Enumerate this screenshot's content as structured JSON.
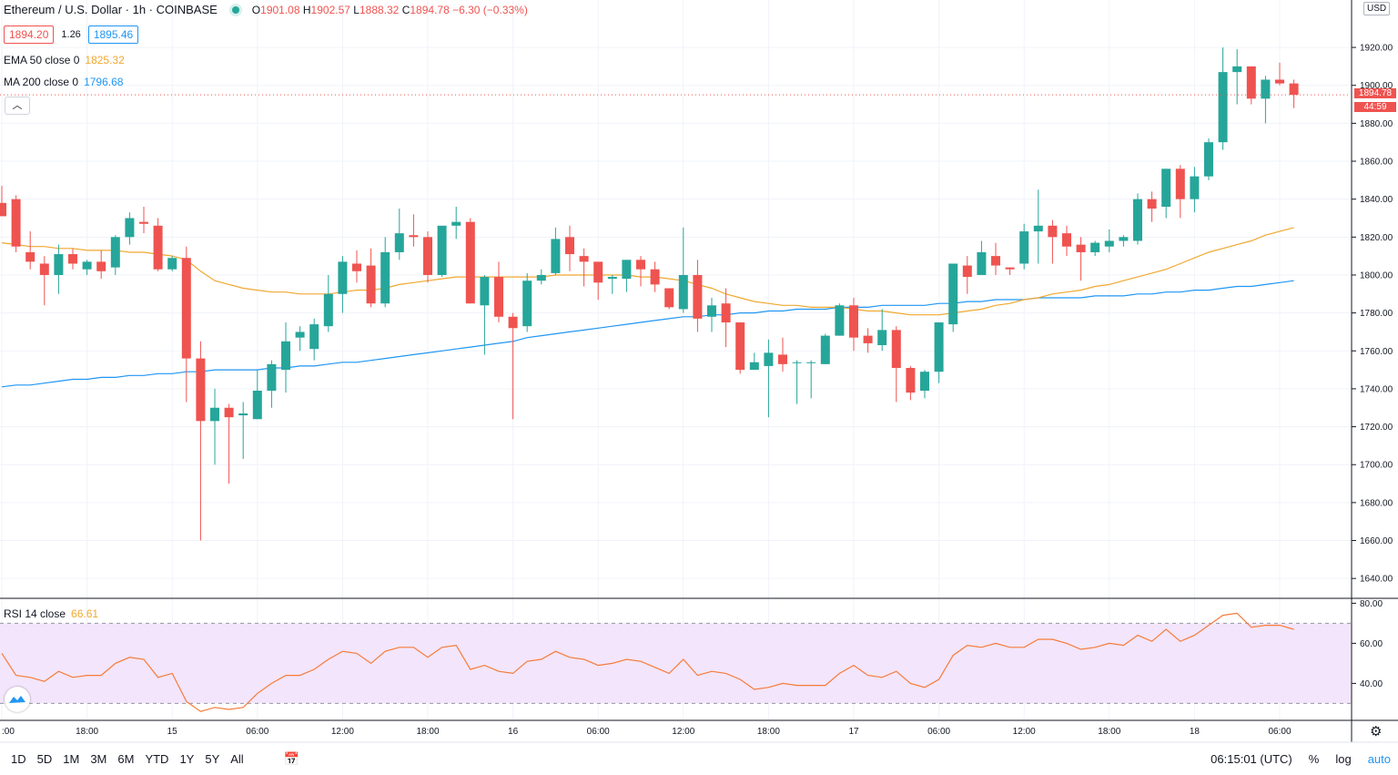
{
  "header": {
    "title": "Ethereum / U.S. Dollar · 1h · COINBASE",
    "o_label": "O",
    "o_value": "1901.08",
    "h_label": "H",
    "h_value": "1902.57",
    "l_label": "L",
    "l_value": "1888.32",
    "c_label": "C",
    "c_value": "1894.78",
    "change": "−6.30 (−0.33%)"
  },
  "quote": {
    "bid": "1894.20",
    "spread": "1.26",
    "ask": "1895.46"
  },
  "indicators": {
    "ema_label": "EMA 50 close 0",
    "ema_value": "1825.32",
    "ma_label": "MA 200 close 0",
    "ma_value": "1796.68",
    "rsi_label": "RSI 14 close",
    "rsi_value": "66.61"
  },
  "price_axis": {
    "currency": "USD",
    "last_price": "1894.78",
    "countdown": "44:59"
  },
  "bottom_bar": {
    "timeframes": [
      "1D",
      "5D",
      "1M",
      "3M",
      "6M",
      "YTD",
      "1Y",
      "5Y",
      "All"
    ],
    "clock": "06:15:01 (UTC)",
    "percent": "%",
    "log": "log",
    "auto": "auto"
  },
  "colors": {
    "up": "#26a69a",
    "down": "#ef5350",
    "ema": "#f0a830",
    "ma": "#2196f3",
    "rsi": "#f57c3a",
    "rsi_band": "#f3e5fb"
  },
  "chart_data": {
    "type": "candlestick",
    "title": "Ethereum / U.S. Dollar · 1h · COINBASE",
    "ylim": [
      1630,
      1945
    ],
    "yticks": [
      1640,
      1660,
      1680,
      1700,
      1720,
      1740,
      1760,
      1780,
      1800,
      1820,
      1840,
      1860,
      1880,
      1900,
      1920
    ],
    "xticks": [
      {
        "i": 0,
        "label": ":00"
      },
      {
        "i": 6,
        "label": "18:00"
      },
      {
        "i": 12,
        "label": "15"
      },
      {
        "i": 18,
        "label": "06:00"
      },
      {
        "i": 24,
        "label": "12:00"
      },
      {
        "i": 30,
        "label": "18:00"
      },
      {
        "i": 36,
        "label": "16"
      },
      {
        "i": 42,
        "label": "06:00"
      },
      {
        "i": 48,
        "label": "12:00"
      },
      {
        "i": 54,
        "label": "18:00"
      },
      {
        "i": 60,
        "label": "17"
      },
      {
        "i": 66,
        "label": "06:00"
      },
      {
        "i": 72,
        "label": "12:00"
      },
      {
        "i": 78,
        "label": "18:00"
      },
      {
        "i": 84,
        "label": "18"
      },
      {
        "i": 90,
        "label": "06:00"
      }
    ],
    "candles": [
      [
        1838,
        1847,
        1831,
        1831
      ],
      [
        1840,
        1842,
        1812,
        1815
      ],
      [
        1812,
        1823,
        1803,
        1807
      ],
      [
        1806,
        1810,
        1784,
        1800
      ],
      [
        1800,
        1816,
        1790,
        1811
      ],
      [
        1811,
        1814,
        1803,
        1806
      ],
      [
        1803,
        1808,
        1800,
        1807
      ],
      [
        1807,
        1813,
        1798,
        1802
      ],
      [
        1804,
        1821,
        1800,
        1820
      ],
      [
        1820,
        1833,
        1816,
        1830
      ],
      [
        1828,
        1836,
        1822,
        1827
      ],
      [
        1826,
        1830,
        1802,
        1803
      ],
      [
        1803,
        1810,
        1802,
        1809
      ],
      [
        1809,
        1815,
        1733,
        1756
      ],
      [
        1756,
        1765,
        1660,
        1723
      ],
      [
        1723,
        1740,
        1700,
        1730
      ],
      [
        1730,
        1732,
        1690,
        1725
      ],
      [
        1726,
        1733,
        1703,
        1727
      ],
      [
        1724,
        1750,
        1724,
        1739
      ],
      [
        1739,
        1755,
        1730,
        1753
      ],
      [
        1750,
        1775,
        1738,
        1765
      ],
      [
        1767,
        1773,
        1760,
        1770
      ],
      [
        1761,
        1777,
        1755,
        1774
      ],
      [
        1773,
        1800,
        1770,
        1790
      ],
      [
        1790,
        1810,
        1780,
        1807
      ],
      [
        1806,
        1813,
        1796,
        1802
      ],
      [
        1805,
        1814,
        1783,
        1785
      ],
      [
        1785,
        1820,
        1783,
        1812
      ],
      [
        1812,
        1835,
        1808,
        1822
      ],
      [
        1821,
        1832,
        1815,
        1820
      ],
      [
        1820,
        1823,
        1796,
        1800
      ],
      [
        1800,
        1825,
        1799,
        1826
      ],
      [
        1826,
        1836,
        1819,
        1828
      ],
      [
        1828,
        1830,
        1785,
        1785
      ],
      [
        1784,
        1800,
        1758,
        1799
      ],
      [
        1799,
        1807,
        1775,
        1778
      ],
      [
        1778,
        1780,
        1724,
        1772
      ],
      [
        1773,
        1801,
        1770,
        1797
      ],
      [
        1797,
        1803,
        1795,
        1800
      ],
      [
        1801,
        1825,
        1800,
        1819
      ],
      [
        1820,
        1826,
        1802,
        1811
      ],
      [
        1810,
        1814,
        1794,
        1807
      ],
      [
        1807,
        1805,
        1787,
        1796
      ],
      [
        1798,
        1800,
        1790,
        1799
      ],
      [
        1798,
        1807,
        1791,
        1808
      ],
      [
        1808,
        1810,
        1794,
        1803
      ],
      [
        1803,
        1807,
        1791,
        1795
      ],
      [
        1793,
        1793,
        1782,
        1783
      ],
      [
        1782,
        1825,
        1780,
        1800
      ],
      [
        1800,
        1808,
        1770,
        1777
      ],
      [
        1778,
        1788,
        1770,
        1784
      ],
      [
        1785,
        1793,
        1762,
        1775
      ],
      [
        1775,
        1775,
        1748,
        1750
      ],
      [
        1750,
        1759,
        1750,
        1754
      ],
      [
        1752,
        1766,
        1725,
        1759
      ],
      [
        1758,
        1767,
        1749,
        1753
      ],
      [
        1754,
        1755,
        1732,
        1754
      ],
      [
        1754,
        1755,
        1735,
        1754
      ],
      [
        1753,
        1769,
        1753,
        1768
      ],
      [
        1768,
        1785,
        1768,
        1784
      ],
      [
        1784,
        1788,
        1760,
        1767
      ],
      [
        1768,
        1772,
        1759,
        1764
      ],
      [
        1763,
        1782,
        1760,
        1771
      ],
      [
        1771,
        1773,
        1733,
        1751
      ],
      [
        1751,
        1752,
        1734,
        1738
      ],
      [
        1739,
        1750,
        1735,
        1749
      ],
      [
        1749,
        1775,
        1743,
        1775
      ],
      [
        1774,
        1806,
        1770,
        1806
      ],
      [
        1805,
        1810,
        1790,
        1799
      ],
      [
        1800,
        1818,
        1800,
        1812
      ],
      [
        1810,
        1817,
        1800,
        1805
      ],
      [
        1804,
        1804,
        1800,
        1803
      ],
      [
        1806,
        1827,
        1803,
        1823
      ],
      [
        1823,
        1845,
        1806,
        1826
      ],
      [
        1826,
        1829,
        1806,
        1820
      ],
      [
        1822,
        1826,
        1810,
        1815
      ],
      [
        1816,
        1820,
        1797,
        1812
      ],
      [
        1812,
        1818,
        1810,
        1817
      ],
      [
        1815,
        1824,
        1812,
        1818
      ],
      [
        1818,
        1821,
        1815,
        1820
      ],
      [
        1818,
        1843,
        1816,
        1840
      ],
      [
        1840,
        1844,
        1828,
        1835
      ],
      [
        1836,
        1856,
        1830,
        1856
      ],
      [
        1856,
        1858,
        1830,
        1840
      ],
      [
        1840,
        1857,
        1833,
        1852
      ],
      [
        1852,
        1872,
        1850,
        1870
      ],
      [
        1870,
        1920,
        1866,
        1907
      ],
      [
        1907,
        1919,
        1890,
        1910
      ],
      [
        1910,
        1910,
        1890,
        1893
      ],
      [
        1893,
        1905,
        1880,
        1903
      ],
      [
        1903,
        1912,
        1900,
        1901
      ],
      [
        1901,
        1903,
        1888,
        1895
      ]
    ],
    "ema50_series": [
      1817,
      1816,
      1815,
      1815,
      1814,
      1814,
      1813,
      1813,
      1813,
      1812,
      1812,
      1811,
      1810,
      1808,
      1802,
      1797,
      1795,
      1793,
      1792,
      1791,
      1791,
      1790,
      1790,
      1790,
      1791,
      1792,
      1792,
      1793,
      1795,
      1796,
      1797,
      1798,
      1799,
      1799,
      1799,
      1799,
      1799,
      1799,
      1799,
      1800,
      1800,
      1800,
      1800,
      1800,
      1800,
      1799,
      1799,
      1798,
      1797,
      1795,
      1793,
      1790,
      1788,
      1786,
      1785,
      1784,
      1784,
      1783,
      1783,
      1783,
      1782,
      1781,
      1781,
      1780,
      1779,
      1779,
      1779,
      1780,
      1781,
      1782,
      1784,
      1785,
      1787,
      1788,
      1790,
      1791,
      1792,
      1794,
      1795,
      1797,
      1799,
      1801,
      1803,
      1806,
      1809,
      1812,
      1814,
      1816,
      1818,
      1821,
      1823,
      1825
    ],
    "ma200_series": [
      1741,
      1742,
      1742,
      1743,
      1744,
      1745,
      1745,
      1746,
      1746,
      1747,
      1747,
      1748,
      1748,
      1749,
      1749,
      1750,
      1750,
      1750,
      1750,
      1751,
      1751,
      1752,
      1752,
      1753,
      1754,
      1754,
      1755,
      1756,
      1757,
      1758,
      1759,
      1760,
      1761,
      1762,
      1763,
      1764,
      1765,
      1767,
      1768,
      1769,
      1770,
      1771,
      1772,
      1773,
      1774,
      1775,
      1776,
      1777,
      1778,
      1778,
      1779,
      1779,
      1780,
      1780,
      1781,
      1781,
      1782,
      1782,
      1782,
      1783,
      1783,
      1783,
      1784,
      1784,
      1784,
      1784,
      1785,
      1785,
      1786,
      1786,
      1787,
      1787,
      1787,
      1788,
      1788,
      1788,
      1788,
      1789,
      1789,
      1789,
      1790,
      1790,
      1791,
      1791,
      1792,
      1792,
      1793,
      1794,
      1794,
      1795,
      1796,
      1797
    ],
    "rsi": {
      "ylim": [
        22,
        82
      ],
      "yticks": [
        40,
        60,
        80
      ],
      "band": [
        30,
        70
      ],
      "values": [
        55,
        44,
        43,
        41,
        46,
        43,
        44,
        44,
        50,
        53,
        52,
        43,
        45,
        31,
        26,
        28,
        27,
        28,
        35,
        40,
        44,
        44,
        47,
        52,
        56,
        55,
        50,
        56,
        58,
        58,
        53,
        58,
        59,
        47,
        49,
        46,
        45,
        51,
        52,
        56,
        53,
        52,
        49,
        50,
        52,
        51,
        48,
        45,
        52,
        44,
        46,
        45,
        42,
        37,
        38,
        40,
        39,
        39,
        39,
        45,
        49,
        44,
        43,
        46,
        40,
        38,
        42,
        54,
        59,
        58,
        60,
        58,
        58,
        62,
        62,
        60,
        57,
        58,
        60,
        59,
        64,
        61,
        67,
        61,
        64,
        69,
        74,
        75,
        68,
        69,
        69,
        67
      ]
    }
  }
}
